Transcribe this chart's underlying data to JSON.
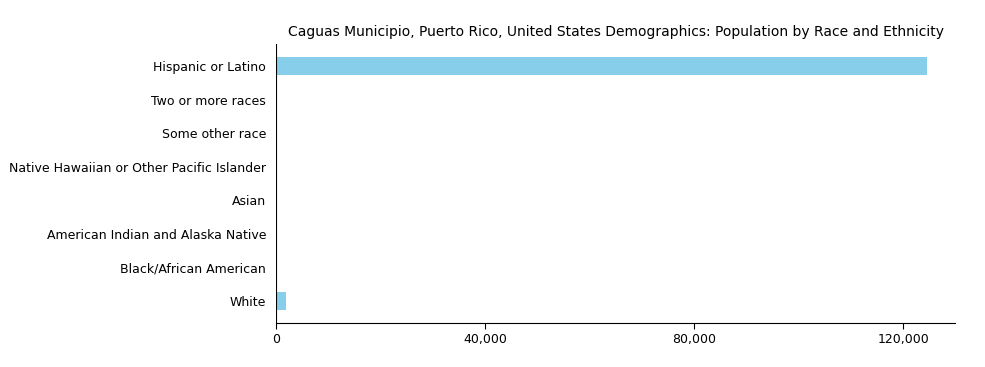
{
  "title": "Caguas Municipio, Puerto Rico, United States Demographics: Population by Race and Ethnicity",
  "categories": [
    "Hispanic or Latino",
    "Two or more races",
    "Some other race",
    "Native Hawaiian or Other Pacific Islander",
    "Asian",
    "American Indian and Alaska Native",
    "Black/African American",
    "White"
  ],
  "values": [
    124500,
    180,
    120,
    30,
    80,
    50,
    40,
    2000
  ],
  "bar_color": "#87CEEB",
  "background_color": "#ffffff",
  "xlim": [
    0,
    130000
  ],
  "xticks": [
    0,
    40000,
    80000,
    120000
  ],
  "title_fontsize": 10,
  "tick_fontsize": 9,
  "ytick_fontsize": 9
}
